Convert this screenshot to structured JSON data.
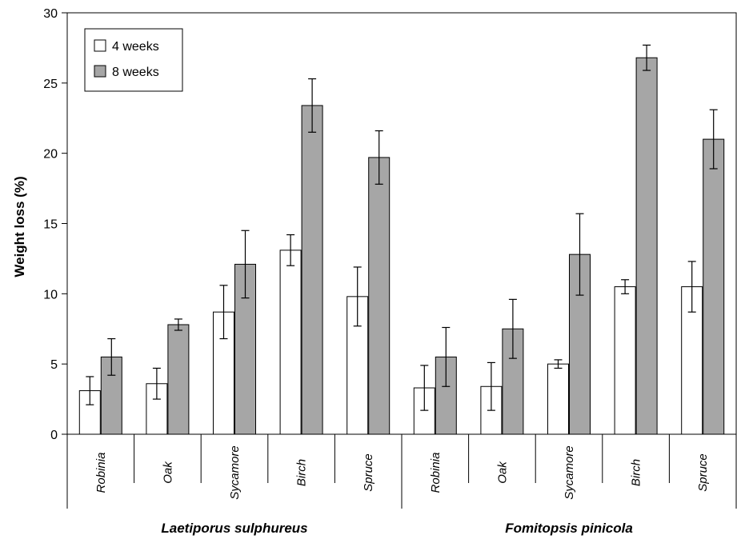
{
  "chart_data": {
    "type": "bar",
    "ylabel": "Weight loss (%)",
    "ylim": [
      0,
      30
    ],
    "yticks": [
      0,
      5,
      10,
      15,
      20,
      25,
      30
    ],
    "legend_position": "top-left",
    "colors": {
      "4 weeks": "#ffffff",
      "8 weeks": "#a6a6a6"
    },
    "groups": [
      {
        "name": "Laetiporus sulphureus",
        "categories": [
          "Robinia",
          "Oak",
          "Sycamore",
          "Birch",
          "Spruce"
        ],
        "series": [
          {
            "name": "4 weeks",
            "values": [
              3.1,
              3.6,
              8.7,
              13.1,
              9.8
            ],
            "errors": [
              1.0,
              1.1,
              1.9,
              1.1,
              2.1
            ]
          },
          {
            "name": "8 weeks",
            "values": [
              5.5,
              7.8,
              12.1,
              23.4,
              19.7
            ],
            "errors": [
              1.3,
              0.4,
              2.4,
              1.9,
              1.9
            ]
          }
        ]
      },
      {
        "name": "Fomitopsis pinicola",
        "categories": [
          "Robinia",
          "Oak",
          "Sycamore",
          "Birch",
          "Spruce"
        ],
        "series": [
          {
            "name": "4 weeks",
            "values": [
              3.3,
              3.4,
              5.0,
              10.5,
              10.5
            ],
            "errors": [
              1.6,
              1.7,
              0.3,
              0.5,
              1.8
            ]
          },
          {
            "name": "8 weeks",
            "values": [
              5.5,
              7.5,
              12.8,
              26.8,
              21.0
            ],
            "errors": [
              2.1,
              2.1,
              2.9,
              0.9,
              2.1
            ]
          }
        ]
      }
    ]
  }
}
